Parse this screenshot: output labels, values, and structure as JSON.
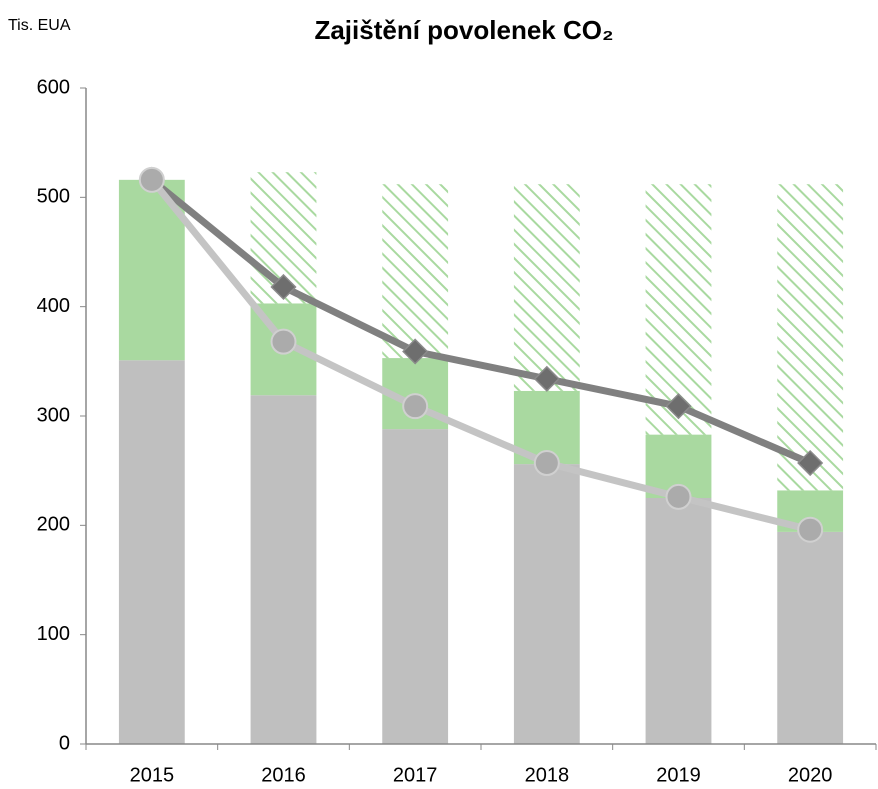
{
  "chart_data": {
    "type": "bar",
    "title": "Zajištění povolenek CO₂",
    "y_label": "Tis. EUA",
    "categories": [
      "2015",
      "2016",
      "2017",
      "2018",
      "2019",
      "2020"
    ],
    "series": [
      {
        "type": "bar",
        "color": "#bfbfbf",
        "values": [
          351,
          319,
          288,
          256,
          225,
          194
        ]
      },
      {
        "type": "bar",
        "color": "#a9d9a0",
        "values": [
          165,
          84,
          65,
          67,
          58,
          38
        ]
      },
      {
        "type": "bar",
        "color": "#a9d9a0",
        "pattern": "hatch",
        "values": [
          0,
          120,
          159,
          189,
          229,
          280
        ]
      },
      {
        "type": "line",
        "color": "#808080",
        "marker": "diamond",
        "values": [
          516,
          418,
          359,
          334,
          309,
          257
        ]
      },
      {
        "type": "line",
        "color": "#c4c4c4",
        "marker": "circle",
        "values": [
          516,
          368,
          309,
          257,
          226,
          196
        ]
      }
    ],
    "ylim": [
      0,
      600
    ],
    "yticks": [
      0,
      100,
      200,
      300,
      400,
      500,
      600
    ],
    "grid": false
  }
}
